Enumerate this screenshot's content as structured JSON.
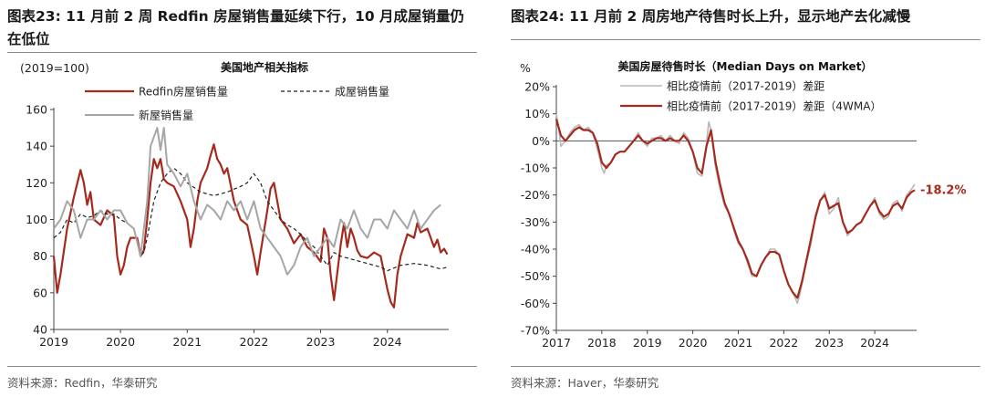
{
  "left": {
    "title": "图表23:  11 月前 2 周 Redfin 房屋销售量延续下行，10 月成屋销量仍在低位",
    "source": "资料来源：Redfin，华泰研究",
    "chart_data": {
      "type": "line",
      "title": "美国地产相关指标",
      "unit_label": "(2019=100)",
      "xlabel": "",
      "ylabel": "",
      "xlim": [
        2019,
        2024.92
      ],
      "ylim": [
        40,
        160
      ],
      "x_ticks": [
        "2019",
        "2020",
        "2021",
        "2022",
        "2023",
        "2024"
      ],
      "y_ticks": [
        40,
        60,
        80,
        100,
        120,
        140,
        160
      ],
      "grid": false,
      "legend_position": "top-left",
      "series": [
        {
          "name": "Redfin房屋销售量",
          "color": "#a52a1e",
          "dash": "solid",
          "width": 2.2,
          "x": [
            2019.0,
            2019.05,
            2019.1,
            2019.2,
            2019.3,
            2019.4,
            2019.45,
            2019.5,
            2019.55,
            2019.6,
            2019.7,
            2019.8,
            2019.9,
            2019.95,
            2020.0,
            2020.05,
            2020.1,
            2020.15,
            2020.25,
            2020.3,
            2020.35,
            2020.4,
            2020.45,
            2020.5,
            2020.55,
            2020.6,
            2020.65,
            2020.7,
            2020.8,
            2020.9,
            2021.0,
            2021.05,
            2021.1,
            2021.15,
            2021.2,
            2021.3,
            2021.35,
            2021.4,
            2021.45,
            2021.5,
            2021.55,
            2021.6,
            2021.7,
            2021.8,
            2021.9,
            2022.0,
            2022.05,
            2022.1,
            2022.2,
            2022.25,
            2022.3,
            2022.35,
            2022.4,
            2022.5,
            2022.6,
            2022.7,
            2022.8,
            2022.9,
            2023.0,
            2023.05,
            2023.1,
            2023.15,
            2023.2,
            2023.3,
            2023.35,
            2023.4,
            2023.45,
            2023.5,
            2023.55,
            2023.6,
            2023.7,
            2023.8,
            2023.9,
            2024.0,
            2024.05,
            2024.1,
            2024.15,
            2024.2,
            2024.3,
            2024.4,
            2024.45,
            2024.5,
            2024.6,
            2024.7,
            2024.75,
            2024.8,
            2024.85,
            2024.9
          ],
          "y": [
            80,
            60,
            70,
            95,
            112,
            127,
            120,
            108,
            115,
            100,
            97,
            105,
            102,
            80,
            70,
            75,
            85,
            90,
            90,
            80,
            83,
            100,
            120,
            133,
            128,
            133,
            122,
            120,
            118,
            110,
            100,
            85,
            95,
            110,
            120,
            128,
            135,
            141,
            133,
            130,
            125,
            128,
            110,
            100,
            97,
            80,
            70,
            82,
            105,
            117,
            120,
            110,
            100,
            95,
            87,
            92,
            85,
            82,
            77,
            95,
            90,
            70,
            56,
            86,
            98,
            85,
            95,
            90,
            83,
            80,
            79,
            82,
            80,
            62,
            55,
            52,
            70,
            80,
            92,
            90,
            98,
            93,
            95,
            85,
            89,
            82,
            84,
            81
          ]
        },
        {
          "name": "成屋销售量",
          "color": "#222222",
          "dash": "4,3",
          "width": 1.2,
          "x": [
            2019.0,
            2019.1,
            2019.2,
            2019.3,
            2019.4,
            2019.5,
            2019.6,
            2019.7,
            2019.8,
            2019.9,
            2020.0,
            2020.1,
            2020.2,
            2020.3,
            2020.35,
            2020.4,
            2020.5,
            2020.6,
            2020.7,
            2020.8,
            2020.9,
            2021.0,
            2021.2,
            2021.4,
            2021.6,
            2021.8,
            2021.9,
            2022.0,
            2022.1,
            2022.2,
            2022.3,
            2022.4,
            2022.5,
            2022.6,
            2022.7,
            2022.8,
            2022.9,
            2023.0,
            2023.1,
            2023.2,
            2023.3,
            2023.5,
            2023.7,
            2023.9,
            2024.0,
            2024.2,
            2024.4,
            2024.6,
            2024.8,
            2024.9
          ],
          "y": [
            90,
            93,
            100,
            98,
            103,
            101,
            102,
            105,
            103,
            103,
            100,
            98,
            95,
            80,
            82,
            90,
            110,
            120,
            125,
            128,
            125,
            120,
            115,
            113,
            115,
            118,
            120,
            125,
            120,
            110,
            105,
            100,
            97,
            95,
            92,
            88,
            85,
            80,
            75,
            82,
            80,
            78,
            76,
            74,
            72,
            75,
            76,
            75,
            73,
            74
          ]
        },
        {
          "name": "新屋销售量",
          "color": "#a6a6a6",
          "dash": "solid",
          "width": 2.0,
          "x": [
            2019.0,
            2019.1,
            2019.2,
            2019.3,
            2019.4,
            2019.5,
            2019.6,
            2019.7,
            2019.8,
            2019.9,
            2020.0,
            2020.1,
            2020.2,
            2020.3,
            2020.4,
            2020.45,
            2020.5,
            2020.55,
            2020.6,
            2020.65,
            2020.7,
            2020.8,
            2020.9,
            2021.0,
            2021.1,
            2021.2,
            2021.3,
            2021.4,
            2021.5,
            2021.6,
            2021.7,
            2021.8,
            2021.9,
            2022.0,
            2022.1,
            2022.2,
            2022.3,
            2022.4,
            2022.5,
            2022.6,
            2022.7,
            2022.8,
            2022.9,
            2023.0,
            2023.1,
            2023.2,
            2023.3,
            2023.4,
            2023.5,
            2023.6,
            2023.7,
            2023.8,
            2023.9,
            2024.0,
            2024.1,
            2024.2,
            2024.3,
            2024.4,
            2024.5,
            2024.6,
            2024.7,
            2024.8
          ],
          "y": [
            95,
            100,
            110,
            105,
            90,
            100,
            100,
            105,
            100,
            105,
            105,
            98,
            95,
            80,
            110,
            140,
            145,
            150,
            138,
            150,
            130,
            125,
            118,
            125,
            110,
            100,
            108,
            105,
            100,
            110,
            105,
            110,
            100,
            110,
            95,
            90,
            85,
            80,
            70,
            75,
            85,
            90,
            80,
            85,
            90,
            85,
            100,
            95,
            105,
            95,
            90,
            100,
            100,
            95,
            105,
            100,
            95,
            105,
            95,
            100,
            105,
            108
          ]
        }
      ]
    }
  },
  "right": {
    "title": "图表24:  11 月前 2 周房地产待售时长上升，显示地产去化减慢",
    "source": "资料来源：Haver，华泰研究",
    "chart_data": {
      "type": "line",
      "title": "美国房屋待售时长（Median Days on Market）",
      "unit_label": "%",
      "xlabel": "",
      "ylabel": "",
      "xlim": [
        2017,
        2024.92
      ],
      "ylim": [
        -70,
        20
      ],
      "x_ticks": [
        "2017",
        "2018",
        "2019",
        "2020",
        "2021",
        "2022",
        "2023",
        "2024"
      ],
      "y_ticks": [
        "20%",
        "10%",
        "0%",
        "-10%",
        "-20%",
        "-30%",
        "-40%",
        "-50%",
        "-60%",
        "-70%"
      ],
      "zero_line": true,
      "grid": false,
      "legend_position": "top-left",
      "annotation": "-18.2%",
      "series": [
        {
          "name": "相比疫情前（2017-2019）差距",
          "color": "#b8b8b8",
          "dash": "solid",
          "width": 1.6,
          "x": [
            2017.0,
            2017.05,
            2017.1,
            2017.2,
            2017.3,
            2017.4,
            2017.5,
            2017.6,
            2017.7,
            2017.8,
            2017.9,
            2018.0,
            2018.05,
            2018.1,
            2018.2,
            2018.3,
            2018.4,
            2018.5,
            2018.6,
            2018.7,
            2018.8,
            2018.9,
            2019.0,
            2019.1,
            2019.2,
            2019.3,
            2019.4,
            2019.5,
            2019.6,
            2019.7,
            2019.8,
            2019.9,
            2020.0,
            2020.1,
            2020.2,
            2020.3,
            2020.35,
            2020.4,
            2020.5,
            2020.6,
            2020.7,
            2020.8,
            2020.9,
            2021.0,
            2021.1,
            2021.2,
            2021.3,
            2021.4,
            2021.5,
            2021.6,
            2021.7,
            2021.8,
            2021.9,
            2022.0,
            2022.1,
            2022.2,
            2022.3,
            2022.35,
            2022.4,
            2022.5,
            2022.6,
            2022.7,
            2022.8,
            2022.9,
            2023.0,
            2023.1,
            2023.2,
            2023.3,
            2023.4,
            2023.5,
            2023.6,
            2023.7,
            2023.8,
            2023.9,
            2024.0,
            2024.1,
            2024.2,
            2024.3,
            2024.4,
            2024.5,
            2024.6,
            2024.7,
            2024.8,
            2024.88
          ],
          "y": [
            10,
            5,
            -2,
            0,
            3,
            5,
            6,
            4,
            5,
            3,
            -3,
            -10,
            -12,
            -9,
            -8,
            -5,
            -4,
            -4,
            -2,
            0,
            3,
            0,
            -2,
            1,
            1,
            2,
            0,
            2,
            0,
            -1,
            3,
            1,
            -4,
            -12,
            -13,
            -1,
            7,
            4,
            -10,
            -18,
            -24,
            -27,
            -33,
            -38,
            -40,
            -45,
            -50,
            -50,
            -46,
            -43,
            -40,
            -40,
            -42,
            -48,
            -53,
            -56,
            -60,
            -57,
            -53,
            -45,
            -38,
            -27,
            -22,
            -19,
            -27,
            -25,
            -21,
            -30,
            -35,
            -33,
            -31,
            -30,
            -27,
            -24,
            -21,
            -27,
            -29,
            -28,
            -23,
            -22,
            -26,
            -20,
            -18,
            -16
          ]
        },
        {
          "name": "相比疫情前（2017-2019）差距（4WMA）",
          "color": "#a52a1e",
          "dash": "solid",
          "width": 2.2,
          "x": [
            2017.0,
            2017.1,
            2017.2,
            2017.3,
            2017.4,
            2017.5,
            2017.6,
            2017.7,
            2017.8,
            2017.9,
            2018.0,
            2018.1,
            2018.2,
            2018.3,
            2018.4,
            2018.5,
            2018.6,
            2018.7,
            2018.8,
            2018.9,
            2019.0,
            2019.1,
            2019.2,
            2019.3,
            2019.4,
            2019.5,
            2019.6,
            2019.7,
            2019.8,
            2019.9,
            2020.0,
            2020.1,
            2020.2,
            2020.3,
            2020.4,
            2020.5,
            2020.6,
            2020.7,
            2020.8,
            2020.9,
            2021.0,
            2021.1,
            2021.2,
            2021.3,
            2021.4,
            2021.5,
            2021.6,
            2021.7,
            2021.8,
            2021.9,
            2022.0,
            2022.1,
            2022.2,
            2022.3,
            2022.4,
            2022.5,
            2022.6,
            2022.7,
            2022.8,
            2022.9,
            2023.0,
            2023.1,
            2023.2,
            2023.3,
            2023.4,
            2023.5,
            2023.6,
            2023.7,
            2023.8,
            2023.9,
            2024.0,
            2024.1,
            2024.2,
            2024.3,
            2024.4,
            2024.5,
            2024.6,
            2024.7,
            2024.8,
            2024.88
          ],
          "y": [
            8,
            2,
            0,
            2,
            4,
            5,
            4,
            4,
            3,
            -1,
            -8,
            -10,
            -8,
            -5,
            -4,
            -4,
            -2,
            0,
            2,
            0,
            -1,
            0,
            1,
            1,
            0,
            1,
            0,
            0,
            2,
            0,
            -4,
            -10,
            -12,
            -2,
            4,
            -8,
            -16,
            -23,
            -27,
            -32,
            -37,
            -40,
            -44,
            -49,
            -50,
            -46,
            -43,
            -41,
            -41,
            -42,
            -48,
            -53,
            -56,
            -58,
            -52,
            -44,
            -36,
            -28,
            -22,
            -20,
            -25,
            -24,
            -23,
            -30,
            -34,
            -33,
            -31,
            -30,
            -27,
            -24,
            -22,
            -26,
            -28,
            -27,
            -24,
            -23,
            -25,
            -21,
            -19,
            -18.2
          ]
        }
      ]
    }
  }
}
